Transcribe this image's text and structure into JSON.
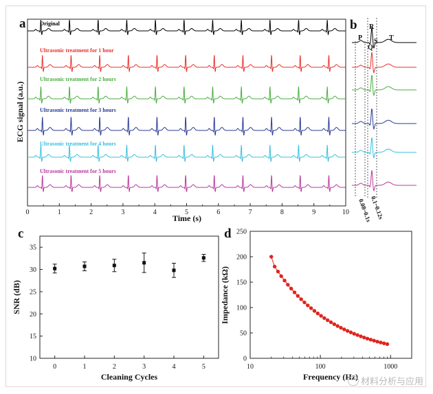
{
  "chart_data": [
    {
      "type": "line",
      "panel_label": "a",
      "xlabel": "Time (s)",
      "ylabel": "ECG signal (a.u.)",
      "xlim": [
        0,
        10
      ],
      "xticks": [
        "0",
        "1",
        "2",
        "3",
        "4",
        "5",
        "6",
        "7",
        "8",
        "9",
        "10"
      ],
      "beat_period_s": 0.9,
      "series": [
        {
          "name": "Original",
          "color": "#000000"
        },
        {
          "name": "Ultrasonic treatment for 1 hour",
          "color": "#e8302a"
        },
        {
          "name": "Ultrasonic treatment for 2 hours",
          "color": "#4aae3f"
        },
        {
          "name": "Ultrasonic treatment for 3 hours",
          "color": "#2a3a95"
        },
        {
          "name": "Ultrasonic treatment for 4 hours",
          "color": "#38c0dc"
        },
        {
          "name": "Ultrasonic treatment for 5 hours",
          "color": "#b8399c"
        }
      ]
    },
    {
      "type": "line",
      "panel_label": "b",
      "wave_labels": [
        "P",
        "R",
        "Q",
        "S",
        "T"
      ],
      "annotations": [
        "0.08~0.1s",
        "0.1~0.12s"
      ],
      "series_colors": [
        "#000000",
        "#e8302a",
        "#4aae3f",
        "#2a3a95",
        "#38c0dc",
        "#b8399c"
      ]
    },
    {
      "type": "scatter",
      "panel_label": "c",
      "xlabel": "Cleaning Cycles",
      "ylabel": "SNR (dB)",
      "xlim": [
        -0.5,
        5.5
      ],
      "ylim": [
        10,
        37.5
      ],
      "xticks": [
        0,
        1,
        2,
        3,
        4,
        5
      ],
      "yticks": [
        10,
        15,
        20,
        25,
        30,
        35
      ],
      "x": [
        0,
        1,
        2,
        3,
        4,
        5
      ],
      "y": [
        30.2,
        30.7,
        30.9,
        31.5,
        29.8,
        32.6
      ],
      "error": [
        1.0,
        1.0,
        1.4,
        2.2,
        1.6,
        0.8
      ]
    },
    {
      "type": "scatter",
      "panel_label": "d",
      "xlabel": "Frequency (Hz)",
      "ylabel": "Impedance (kΩ)",
      "xscale": "log",
      "xlim": [
        10,
        2000
      ],
      "ylim": [
        0,
        250
      ],
      "xticks": [
        10,
        100,
        1000
      ],
      "yticks": [
        0,
        50,
        100,
        150,
        200,
        250
      ],
      "x": [
        20,
        22.3,
        24.9,
        27.7,
        30.9,
        34.4,
        38.4,
        42.8,
        47.7,
        53.2,
        59.3,
        66.1,
        73.7,
        82.2,
        91.6,
        102.1,
        113.8,
        126.9,
        141.5,
        157.7,
        175.8,
        196,
        218.5,
        243.6,
        271.6,
        302.8,
        337.6,
        376.4,
        419.6,
        467.8,
        521.5,
        581.4,
        648.2,
        722.6,
        805.6,
        898.2
      ],
      "y": [
        200,
        180.6,
        170.9,
        161.7,
        153.1,
        144.9,
        137.2,
        129.8,
        122.9,
        116.3,
        110.1,
        104.2,
        98.7,
        93.4,
        88.4,
        83.7,
        79.2,
        75,
        71,
        67.2,
        63.6,
        60.2,
        57,
        54,
        51.1,
        48.3,
        45.8,
        43.3,
        41,
        38.8,
        36.7,
        34.8,
        32.9,
        31.2,
        29.5,
        28
      ]
    }
  ],
  "watermark": "材料分析与应用"
}
